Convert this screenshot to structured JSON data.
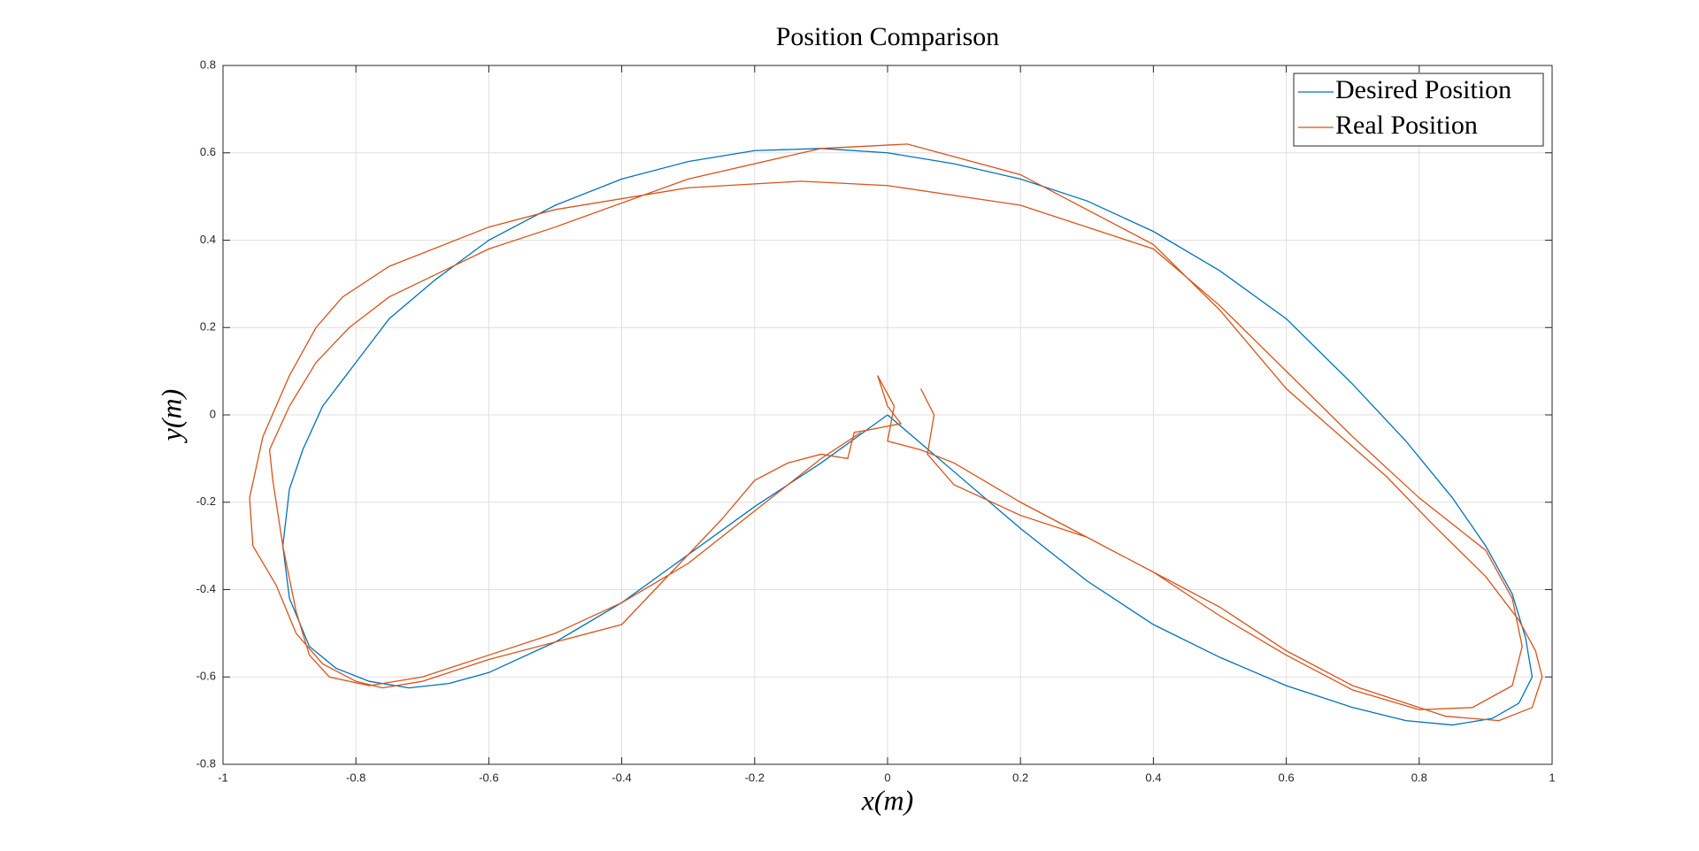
{
  "chart_data": {
    "type": "line",
    "title": "Position Comparison",
    "x_label": "x(m)",
    "y_label": "y(m)",
    "xlim": [
      -1,
      1
    ],
    "ylim": [
      -0.8,
      0.8
    ],
    "xticks": [
      -1,
      -0.8,
      -0.6,
      -0.4,
      -0.2,
      0,
      0.2,
      0.4,
      0.6,
      0.8,
      1
    ],
    "yticks": [
      -0.8,
      -0.6,
      -0.4,
      -0.2,
      0,
      0.2,
      0.4,
      0.6,
      0.8
    ],
    "grid": true,
    "legend": "top-right",
    "series": [
      {
        "name": "Desired Position",
        "color": "#0072bd",
        "x": [
          0,
          -0.1,
          -0.2,
          -0.3,
          -0.4,
          -0.5,
          -0.6,
          -0.66,
          -0.72,
          -0.78,
          -0.83,
          -0.87,
          -0.9,
          -0.91,
          -0.9,
          -0.88,
          -0.85,
          -0.8,
          -0.75,
          -0.68,
          -0.6,
          -0.5,
          -0.4,
          -0.3,
          -0.2,
          -0.1,
          0,
          0.1,
          0.2,
          0.3,
          0.4,
          0.5,
          0.6,
          0.7,
          0.78,
          0.85,
          0.9,
          0.94,
          0.96,
          0.97,
          0.95,
          0.91,
          0.85,
          0.78,
          0.7,
          0.6,
          0.5,
          0.4,
          0.3,
          0.2,
          0.1,
          0
        ],
        "values": [
          0,
          -0.11,
          -0.21,
          -0.32,
          -0.43,
          -0.52,
          -0.59,
          -0.615,
          -0.625,
          -0.61,
          -0.58,
          -0.53,
          -0.42,
          -0.3,
          -0.17,
          -0.08,
          0.02,
          0.12,
          0.22,
          0.31,
          0.4,
          0.48,
          0.54,
          0.58,
          0.605,
          0.61,
          0.6,
          0.575,
          0.54,
          0.49,
          0.42,
          0.33,
          0.22,
          0.07,
          -0.06,
          -0.19,
          -0.3,
          -0.41,
          -0.51,
          -0.6,
          -0.66,
          -0.695,
          -0.71,
          -0.7,
          -0.67,
          -0.62,
          -0.555,
          -0.48,
          -0.38,
          -0.26,
          -0.13,
          0
        ]
      },
      {
        "name": "Real Position",
        "color": "#d95319",
        "x": [
          0.05,
          0.07,
          0.06,
          0.1,
          0.2,
          0.3,
          0.4,
          0.5,
          0.6,
          0.7,
          0.8,
          0.88,
          0.94,
          0.955,
          0.94,
          0.9,
          0.8,
          0.7,
          0.6,
          0.5,
          0.4,
          0.2,
          0,
          -0.13,
          -0.3,
          -0.5,
          -0.6,
          -0.75,
          -0.82,
          -0.86,
          -0.9,
          -0.94,
          -0.96,
          -0.955,
          -0.92,
          -0.89,
          -0.85,
          -0.8,
          -0.76,
          -0.7,
          -0.6,
          -0.4,
          -0.35,
          -0.3,
          -0.25,
          -0.2,
          -0.15,
          -0.1,
          -0.06,
          -0.05,
          -0.03,
          0.02,
          0,
          -0.015,
          0.01,
          0,
          0.05,
          0.1,
          0.2,
          0.3,
          0.4,
          0.5,
          0.6,
          0.7,
          0.78,
          0.84,
          0.92,
          0.97,
          0.985,
          0.975,
          0.95,
          0.9,
          0.82,
          0.75,
          0.6,
          0.5,
          0.4,
          0.2,
          0.03,
          -0.1,
          -0.3,
          -0.5,
          -0.6,
          -0.75,
          -0.81,
          -0.86,
          -0.9,
          -0.93,
          -0.925,
          -0.91,
          -0.89,
          -0.87,
          -0.84,
          -0.78,
          -0.7,
          -0.6,
          -0.5,
          -0.4,
          -0.3,
          -0.2,
          -0.1,
          -0.04
        ],
        "values": [
          0.06,
          0,
          -0.09,
          -0.16,
          -0.23,
          -0.28,
          -0.36,
          -0.46,
          -0.55,
          -0.63,
          -0.675,
          -0.67,
          -0.62,
          -0.53,
          -0.42,
          -0.31,
          -0.19,
          -0.05,
          0.1,
          0.25,
          0.38,
          0.48,
          0.525,
          0.535,
          0.52,
          0.47,
          0.43,
          0.34,
          0.27,
          0.2,
          0.09,
          -0.05,
          -0.19,
          -0.3,
          -0.39,
          -0.5,
          -0.57,
          -0.61,
          -0.625,
          -0.61,
          -0.56,
          -0.48,
          -0.4,
          -0.32,
          -0.24,
          -0.15,
          -0.11,
          -0.09,
          -0.1,
          -0.04,
          -0.035,
          -0.02,
          0.02,
          0.09,
          0.02,
          -0.06,
          -0.08,
          -0.11,
          -0.2,
          -0.28,
          -0.36,
          -0.44,
          -0.54,
          -0.62,
          -0.66,
          -0.69,
          -0.7,
          -0.67,
          -0.6,
          -0.54,
          -0.47,
          -0.37,
          -0.25,
          -0.14,
          0.06,
          0.24,
          0.39,
          0.55,
          0.62,
          0.61,
          0.54,
          0.43,
          0.38,
          0.27,
          0.2,
          0.12,
          0.02,
          -0.08,
          -0.15,
          -0.3,
          -0.45,
          -0.55,
          -0.6,
          -0.62,
          -0.6,
          -0.55,
          -0.5,
          -0.43,
          -0.34,
          -0.22,
          -0.1,
          -0.04
        ]
      }
    ]
  }
}
